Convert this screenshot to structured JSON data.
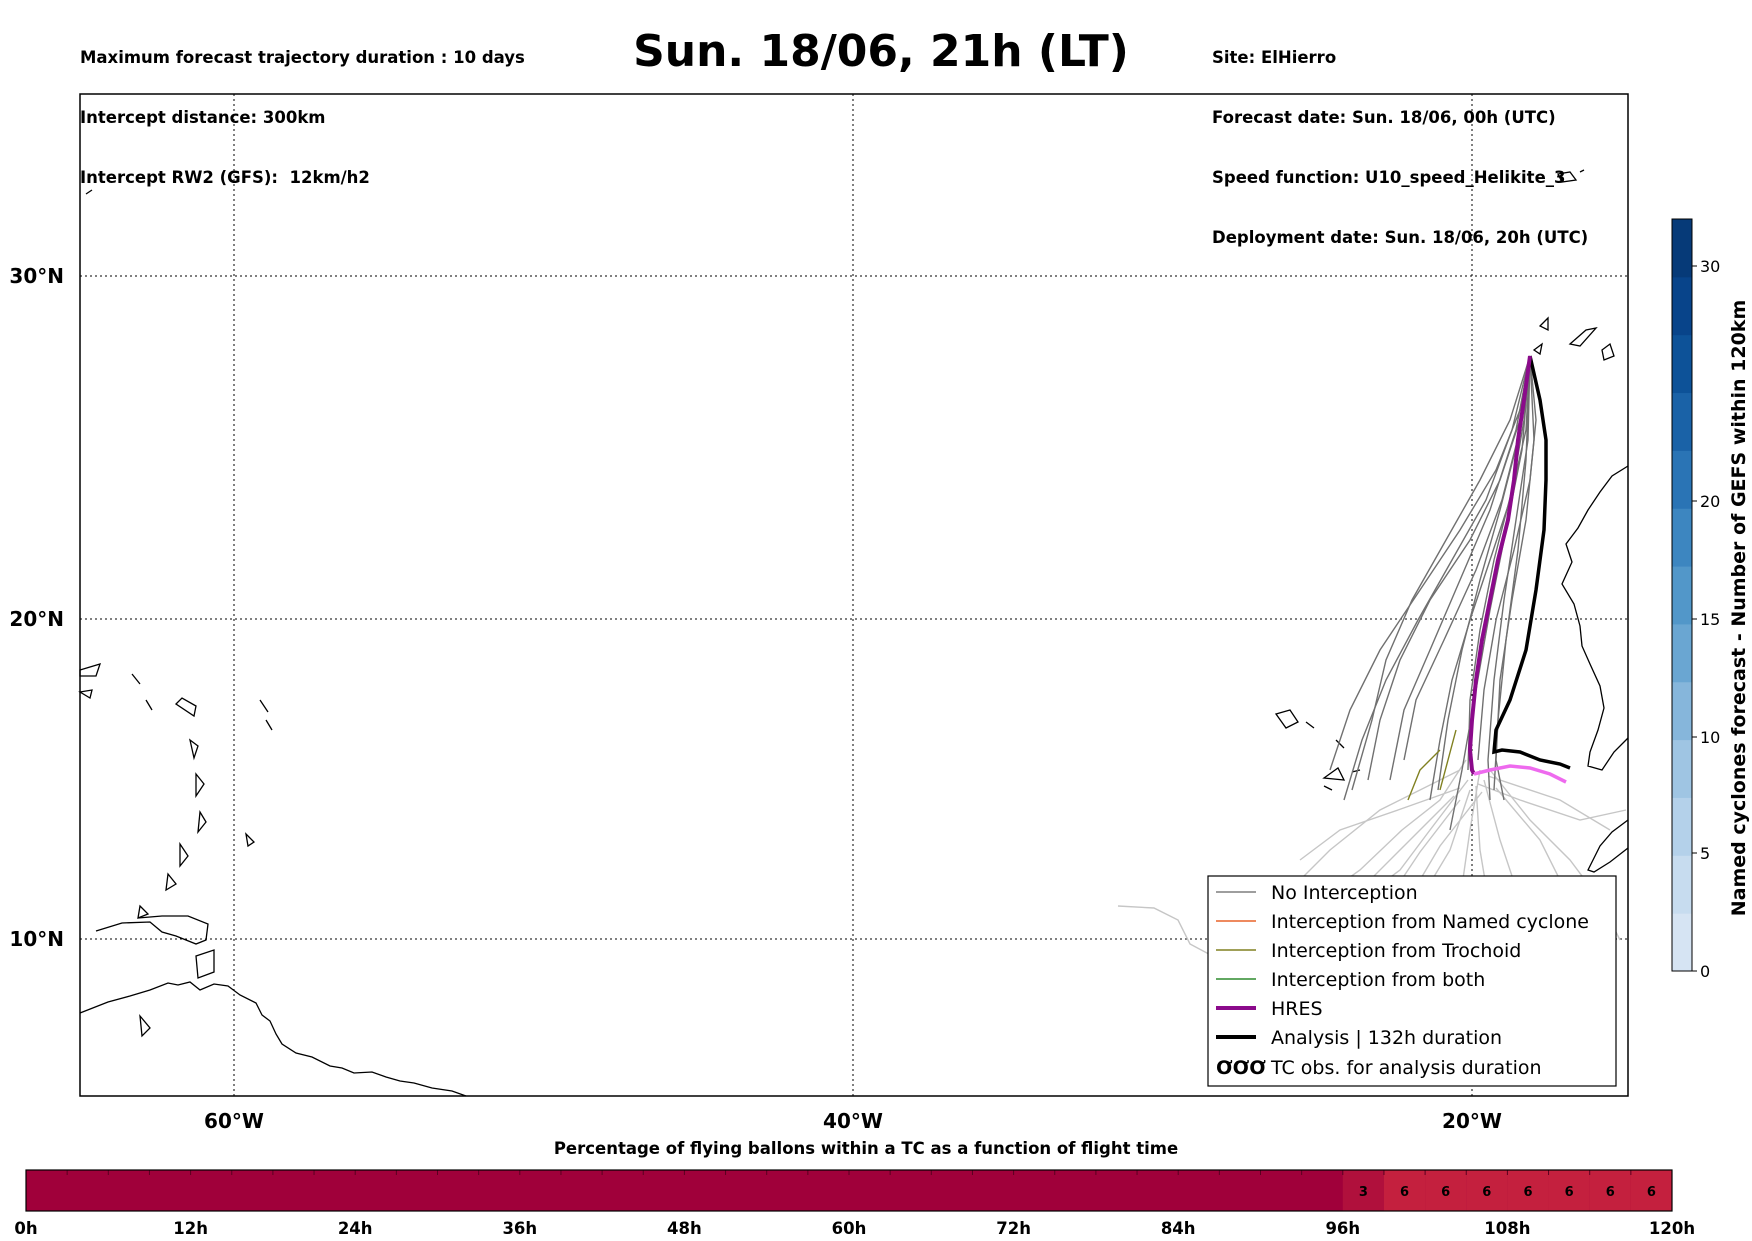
{
  "header": {
    "left_lines": [
      "Maximum forecast trajectory duration : 10 days",
      "Intercept distance: 300km",
      "Intercept RW2 (GFS):  12km/h2"
    ],
    "title": "Sun. 18/06, 21h (LT)",
    "right_lines": [
      "Site: ElHierro",
      "Forecast date: Sun. 18/06, 00h (UTC)",
      "Speed function: U10_speed_Helikite_3",
      "Deployment date: Sun. 18/06, 20h (UTC)"
    ]
  },
  "map": {
    "lat_labels": [
      "30°N",
      "20°N",
      "10°N"
    ],
    "lon_labels": [
      "60°W",
      "40°W",
      "20°W"
    ],
    "grid": "dotted"
  },
  "legend": {
    "placement": "lower-right",
    "items": [
      {
        "label": "No Interception",
        "color": "#7f7f7f",
        "style": "thin"
      },
      {
        "label": "Interception from Named cyclone",
        "color": "#e8642a",
        "style": "thin"
      },
      {
        "label": "Interception from Trochoid",
        "color": "#808020",
        "style": "thin"
      },
      {
        "label": "Interception from both",
        "color": "#2e8b2e",
        "style": "thin"
      },
      {
        "label": "HRES",
        "color": "#8b0a8b",
        "style": "thick"
      },
      {
        "label": "Analysis | 132h duration",
        "color": "#000000",
        "style": "thick"
      },
      {
        "label": "TC obs. for analysis duration",
        "color": "#000000",
        "style": "symbol",
        "symbol": "ƠƠƠ"
      }
    ]
  },
  "colorbar": {
    "label": "Named cyclones forecast - Number of GEFS within 120km",
    "ticks": [
      "0",
      "5",
      "10",
      "15",
      "20",
      "30"
    ],
    "colors": [
      "#d6e4f3",
      "#c7dcef",
      "#b4d1ea",
      "#9fc5e3",
      "#86b6db",
      "#6aa6d2",
      "#5297c9",
      "#3d86c0",
      "#2a74b5",
      "#1a62a7",
      "#0d5298",
      "#08448a",
      "#063a78"
    ]
  },
  "bottom_bar": {
    "title": "Percentage of flying ballons within a TC as a function of flight time",
    "tick_labels": [
      "0h",
      "12h",
      "24h",
      "36h",
      "48h",
      "60h",
      "72h",
      "84h",
      "96h",
      "108h",
      "120h"
    ],
    "cell_values": [
      "3",
      "6",
      "6",
      "6",
      "6",
      "6",
      "6",
      "6"
    ],
    "base_color": "#a0003a",
    "highlight_color": "#c4203e"
  }
}
